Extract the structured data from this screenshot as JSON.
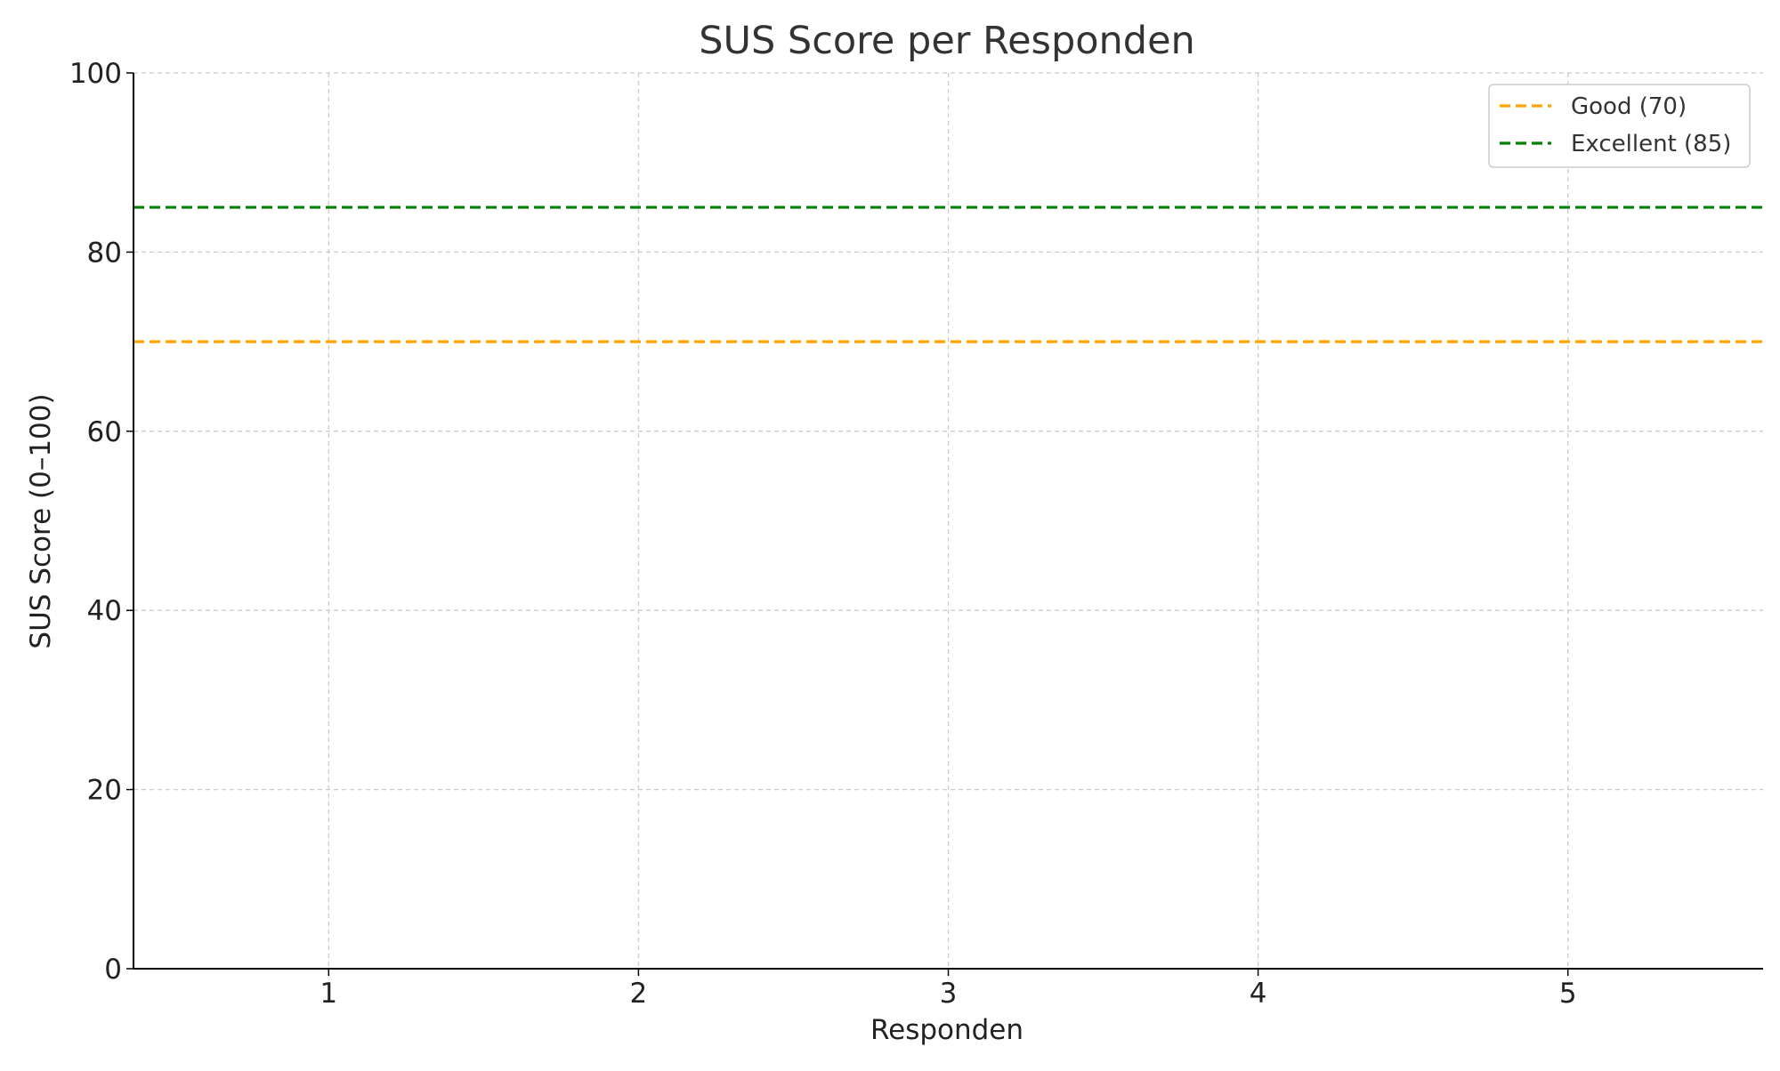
{
  "chart_data": {
    "type": "line",
    "title": "SUS Score per Responden",
    "xlabel": "Responden",
    "ylabel": "SUS Score (0–100)",
    "xlim": [
      0.37,
      5.63
    ],
    "ylim": [
      0,
      100
    ],
    "xticks": [
      1,
      2,
      3,
      4,
      5
    ],
    "yticks": [
      0,
      20,
      40,
      60,
      80,
      100
    ],
    "grid": true,
    "legend_position": "top-right",
    "series": [],
    "reference_lines": [
      {
        "name": "Good (70)",
        "y": 70,
        "color": "#FFA500",
        "style": "dashed"
      },
      {
        "name": "Excellent (85)",
        "y": 85,
        "color": "#008000",
        "style": "dashed"
      }
    ]
  }
}
